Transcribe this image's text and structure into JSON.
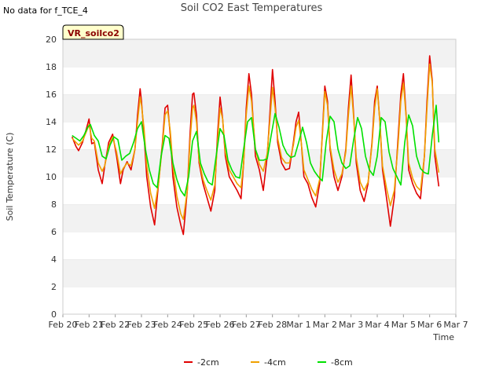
{
  "header": {
    "title": "Soil CO2 East Temperatures",
    "no_data_note": "No data for f_TCE_4",
    "badge": "VR_soilco2"
  },
  "chart_data": {
    "type": "line",
    "xlabel": "Time",
    "ylabel": "Soil Temperature (C)",
    "ylim": [
      0,
      20
    ],
    "yticks": [
      0,
      2,
      4,
      6,
      8,
      10,
      12,
      14,
      16,
      18,
      20
    ],
    "xlim": [
      0,
      15
    ],
    "xticks": [
      0,
      1,
      2,
      3,
      4,
      5,
      6,
      7,
      8,
      9,
      10,
      11,
      12,
      13,
      14,
      15
    ],
    "xtick_labels": [
      "Feb 20",
      "Feb 21",
      "Feb 22",
      "Feb 23",
      "Feb 24",
      "Feb 25",
      "Feb 26",
      "Feb 27",
      "Feb 28",
      "Mar 1",
      "Mar 2",
      "Mar 3",
      "Mar 4",
      "Mar 5",
      "Mar 6",
      "Mar 7"
    ],
    "grid": "horizontal bands",
    "legend_position": "bottom",
    "series": [
      {
        "name": "-2cm",
        "color": "#e00000",
        "x": [
          0.35,
          0.5,
          0.6,
          0.75,
          0.9,
          1.0,
          1.1,
          1.2,
          1.35,
          1.5,
          1.6,
          1.75,
          1.9,
          2.05,
          2.2,
          2.3,
          2.45,
          2.6,
          2.75,
          2.85,
          2.95,
          3.0,
          3.1,
          3.2,
          3.35,
          3.5,
          3.65,
          3.8,
          3.9,
          4.0,
          4.1,
          4.2,
          4.35,
          4.5,
          4.6,
          4.75,
          4.85,
          4.95,
          5.0,
          5.1,
          5.2,
          5.35,
          5.5,
          5.65,
          5.8,
          5.9,
          6.0,
          6.1,
          6.2,
          6.35,
          6.5,
          6.65,
          6.8,
          6.9,
          7.0,
          7.1,
          7.2,
          7.35,
          7.5,
          7.65,
          7.8,
          7.9,
          8.0,
          8.1,
          8.2,
          8.35,
          8.5,
          8.65,
          8.8,
          8.9,
          9.0,
          9.1,
          9.2,
          9.35,
          9.5,
          9.65,
          9.8,
          9.9,
          10.0,
          10.1,
          10.2,
          10.35,
          10.5,
          10.65,
          10.8,
          10.9,
          11.0,
          11.1,
          11.2,
          11.35,
          11.5,
          11.65,
          11.8,
          11.9,
          12.0,
          12.1,
          12.2,
          12.35,
          12.5,
          12.65,
          12.8,
          12.9,
          13.0,
          13.1,
          13.2,
          13.35,
          13.5,
          13.65,
          13.8,
          13.9,
          14.0,
          14.1,
          14.2,
          14.35
        ],
        "y": [
          12.9,
          12.2,
          11.9,
          12.5,
          13.5,
          14.2,
          12.4,
          12.5,
          10.5,
          9.5,
          10.8,
          12.5,
          13.1,
          11.5,
          9.5,
          10.5,
          11.1,
          10.5,
          12.0,
          14.5,
          16.4,
          15.5,
          13.0,
          10.0,
          7.8,
          6.5,
          9.5,
          12.5,
          15.0,
          15.2,
          13.0,
          10.0,
          7.8,
          6.5,
          5.8,
          9.0,
          13.0,
          16.0,
          16.1,
          14.5,
          11.0,
          9.5,
          8.5,
          7.5,
          9.0,
          13.0,
          15.8,
          14.2,
          11.5,
          10.0,
          9.5,
          9.0,
          8.4,
          11.0,
          15.0,
          17.5,
          16.0,
          11.5,
          10.5,
          9.0,
          11.5,
          14.5,
          17.8,
          15.5,
          12.5,
          11.0,
          10.5,
          10.6,
          12.5,
          14.0,
          14.7,
          12.5,
          10.0,
          9.5,
          8.5,
          7.8,
          9.5,
          13.0,
          16.6,
          15.5,
          12.0,
          10.0,
          9.0,
          10.0,
          12.0,
          15.0,
          17.4,
          14.5,
          11.0,
          9.0,
          8.2,
          9.5,
          12.5,
          15.5,
          16.6,
          14.0,
          10.5,
          8.5,
          6.4,
          8.5,
          13.0,
          16.0,
          17.5,
          14.5,
          10.5,
          9.5,
          8.8,
          8.4,
          11.5,
          15.5,
          18.8,
          17.0,
          11.5,
          9.3
        ]
      },
      {
        "name": "-4cm",
        "color": "#f0a000",
        "x": [
          0.35,
          0.5,
          0.6,
          0.75,
          0.9,
          1.0,
          1.1,
          1.2,
          1.35,
          1.5,
          1.6,
          1.75,
          1.9,
          2.05,
          2.2,
          2.3,
          2.45,
          2.6,
          2.75,
          2.85,
          2.95,
          3.0,
          3.1,
          3.2,
          3.35,
          3.5,
          3.65,
          3.8,
          3.9,
          4.0,
          4.1,
          4.2,
          4.35,
          4.5,
          4.6,
          4.75,
          4.85,
          4.95,
          5.0,
          5.1,
          5.2,
          5.35,
          5.5,
          5.65,
          5.8,
          5.9,
          6.0,
          6.1,
          6.2,
          6.35,
          6.5,
          6.65,
          6.8,
          6.9,
          7.0,
          7.1,
          7.2,
          7.35,
          7.5,
          7.65,
          7.8,
          7.9,
          8.0,
          8.1,
          8.2,
          8.35,
          8.5,
          8.65,
          8.8,
          8.9,
          9.0,
          9.1,
          9.2,
          9.35,
          9.5,
          9.65,
          9.8,
          9.9,
          10.0,
          10.1,
          10.2,
          10.35,
          10.5,
          10.65,
          10.8,
          10.9,
          11.0,
          11.1,
          11.2,
          11.35,
          11.5,
          11.65,
          11.8,
          11.9,
          12.0,
          12.1,
          12.2,
          12.35,
          12.5,
          12.65,
          12.8,
          12.9,
          13.0,
          13.1,
          13.2,
          13.35,
          13.5,
          13.65,
          13.8,
          13.9,
          14.0,
          14.1,
          14.2,
          14.35
        ],
        "y": [
          12.8,
          12.5,
          12.3,
          12.6,
          13.3,
          13.8,
          12.8,
          12.6,
          11.0,
          10.4,
          10.8,
          12.2,
          12.9,
          11.8,
          10.2,
          10.6,
          11.0,
          10.8,
          12.0,
          14.0,
          15.8,
          15.2,
          13.5,
          10.8,
          8.8,
          7.7,
          9.5,
          12.3,
          14.5,
          14.8,
          13.3,
          10.8,
          8.6,
          7.3,
          6.9,
          9.0,
          12.5,
          15.0,
          15.2,
          14.0,
          11.2,
          9.8,
          9.0,
          8.3,
          9.4,
          12.5,
          15.0,
          14.2,
          11.8,
          10.5,
          10.0,
          9.5,
          9.2,
          11.0,
          14.5,
          16.6,
          15.5,
          12.0,
          10.9,
          10.4,
          11.7,
          14.0,
          16.5,
          15.0,
          12.8,
          11.4,
          11.0,
          11.0,
          12.3,
          13.6,
          14.1,
          12.5,
          10.5,
          9.8,
          9.1,
          8.6,
          9.8,
          12.8,
          16.2,
          15.2,
          12.2,
          10.5,
          9.6,
          10.2,
          11.8,
          14.5,
          16.6,
          14.3,
          11.4,
          9.6,
          9.0,
          9.6,
          12.3,
          15.0,
          16.4,
          14.0,
          10.8,
          9.2,
          7.9,
          9.0,
          12.5,
          15.5,
          16.8,
          14.4,
          11.0,
          9.9,
          9.3,
          9.0,
          11.5,
          15.0,
          18.2,
          16.8,
          12.0,
          10.3
        ]
      },
      {
        "name": "-8cm",
        "color": "#00e000",
        "x": [
          0.35,
          0.5,
          0.65,
          0.8,
          0.95,
          1.05,
          1.2,
          1.35,
          1.5,
          1.65,
          1.8,
          1.95,
          2.1,
          2.25,
          2.4,
          2.55,
          2.7,
          2.85,
          3.0,
          3.15,
          3.3,
          3.45,
          3.6,
          3.75,
          3.9,
          4.05,
          4.2,
          4.35,
          4.5,
          4.65,
          4.8,
          4.95,
          5.1,
          5.25,
          5.4,
          5.55,
          5.7,
          5.85,
          6.0,
          6.15,
          6.3,
          6.45,
          6.6,
          6.75,
          6.9,
          7.05,
          7.2,
          7.35,
          7.5,
          7.65,
          7.8,
          7.95,
          8.1,
          8.25,
          8.4,
          8.55,
          8.7,
          8.85,
          9.0,
          9.15,
          9.3,
          9.45,
          9.6,
          9.75,
          9.9,
          10.05,
          10.2,
          10.35,
          10.5,
          10.65,
          10.8,
          10.95,
          11.1,
          11.25,
          11.4,
          11.55,
          11.7,
          11.85,
          12.0,
          12.15,
          12.3,
          12.45,
          12.6,
          12.75,
          12.9,
          13.05,
          13.2,
          13.35,
          13.5,
          13.65,
          13.8,
          13.95,
          14.1,
          14.25,
          14.35
        ],
        "y": [
          13.0,
          12.8,
          12.6,
          13.0,
          13.6,
          13.8,
          13.0,
          12.6,
          11.5,
          11.3,
          12.3,
          12.9,
          12.7,
          11.2,
          11.5,
          11.7,
          12.5,
          13.5,
          14.0,
          12.0,
          10.5,
          9.5,
          9.2,
          11.5,
          13.0,
          12.8,
          11.0,
          9.8,
          9.0,
          8.6,
          10.0,
          12.6,
          13.3,
          11.0,
          10.2,
          9.6,
          9.4,
          11.5,
          13.5,
          13.0,
          11.2,
          10.5,
          10.0,
          9.9,
          12.0,
          14.0,
          14.3,
          12.0,
          11.2,
          11.2,
          11.3,
          13.0,
          14.6,
          13.6,
          12.3,
          11.7,
          11.4,
          11.5,
          12.5,
          13.6,
          12.5,
          11.0,
          10.4,
          10.0,
          9.7,
          12.5,
          14.4,
          14.0,
          12.0,
          11.0,
          10.6,
          10.8,
          12.7,
          14.3,
          13.5,
          11.5,
          10.5,
          10.1,
          11.5,
          14.3,
          14.0,
          11.8,
          10.6,
          10.0,
          9.4,
          12.5,
          14.5,
          13.7,
          11.5,
          10.6,
          10.3,
          10.2,
          13.0,
          15.2,
          12.5
        ]
      }
    ]
  }
}
